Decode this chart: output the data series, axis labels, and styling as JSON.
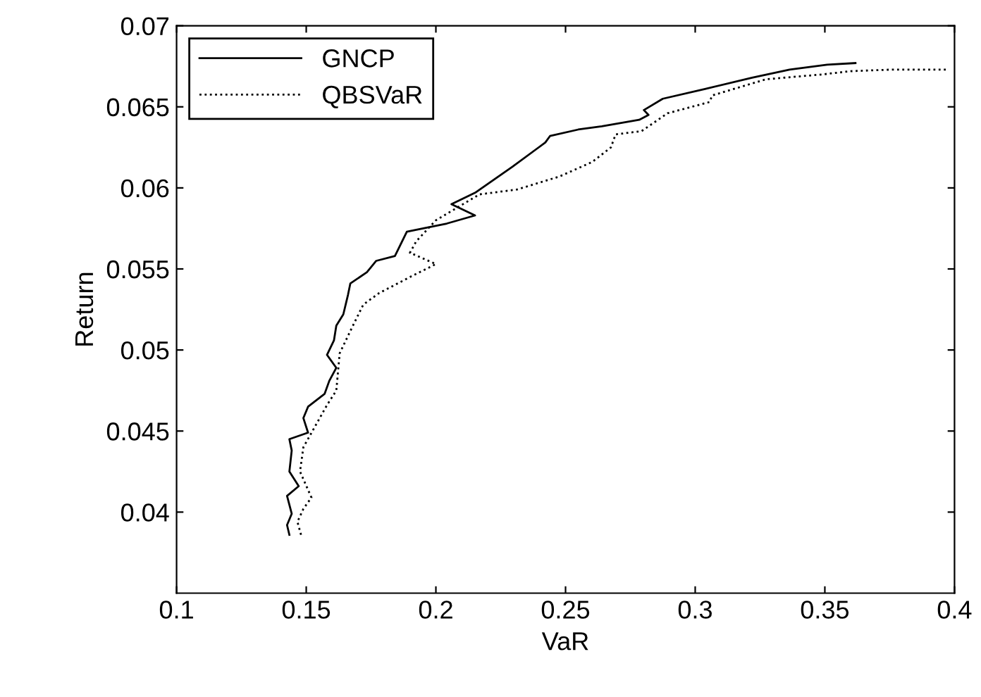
{
  "chart_data": {
    "type": "line",
    "xlabel": "VaR",
    "ylabel": "Return",
    "xlim": [
      0.1,
      0.4
    ],
    "ylim": [
      0.035,
      0.07
    ],
    "xticks": [
      0.1,
      0.15,
      0.2,
      0.25,
      0.3,
      0.35,
      0.4
    ],
    "yticks": [
      0.04,
      0.045,
      0.05,
      0.055,
      0.06,
      0.065,
      0.07
    ],
    "grid": false,
    "legend": "top left",
    "marker": "none",
    "series": [
      {
        "name": "GNCP",
        "color": "#000000",
        "line_style": "solid",
        "x": [
          0.1435,
          0.1426,
          0.1444,
          0.1426,
          0.1471,
          0.1435,
          0.1444,
          0.1435,
          0.1507,
          0.1489,
          0.1507,
          0.1571,
          0.1589,
          0.1616,
          0.158,
          0.1607,
          0.1616,
          0.1643,
          0.1661,
          0.167,
          0.1734,
          0.177,
          0.1842,
          0.1888,
          0.1951,
          0.2042,
          0.2151,
          0.206,
          0.2151,
          0.2295,
          0.2422,
          0.244,
          0.2549,
          0.264,
          0.2784,
          0.282,
          0.2802,
          0.2875,
          0.3038,
          0.3219,
          0.3364,
          0.3509,
          0.3618
        ],
        "values": [
          0.0386,
          0.0392,
          0.0399,
          0.041,
          0.0416,
          0.0425,
          0.0438,
          0.0445,
          0.0449,
          0.0458,
          0.0465,
          0.0473,
          0.0481,
          0.0489,
          0.0497,
          0.0506,
          0.0515,
          0.0522,
          0.0534,
          0.0541,
          0.0548,
          0.0555,
          0.0558,
          0.0573,
          0.0575,
          0.0578,
          0.0583,
          0.059,
          0.0597,
          0.0613,
          0.0628,
          0.0632,
          0.0636,
          0.0638,
          0.0642,
          0.0645,
          0.0648,
          0.0655,
          0.0661,
          0.0668,
          0.0673,
          0.0676,
          0.0677
        ]
      },
      {
        "name": "QBSVaR",
        "color": "#000000",
        "line_style": "dotted",
        "x": [
          0.148,
          0.1466,
          0.1489,
          0.152,
          0.1476,
          0.1489,
          0.158,
          0.1616,
          0.1629,
          0.168,
          0.172,
          0.178,
          0.19,
          0.2,
          0.19,
          0.1924,
          0.2,
          0.2168,
          0.2313,
          0.2476,
          0.2603,
          0.2675,
          0.2693,
          0.2793,
          0.2893,
          0.3056,
          0.3065,
          0.3273,
          0.349,
          0.36,
          0.376,
          0.3978
        ],
        "values": [
          0.0386,
          0.0394,
          0.0402,
          0.0409,
          0.0425,
          0.044,
          0.0466,
          0.0475,
          0.0498,
          0.0515,
          0.0528,
          0.0535,
          0.0545,
          0.0553,
          0.056,
          0.0567,
          0.058,
          0.0596,
          0.0599,
          0.0607,
          0.0616,
          0.0625,
          0.0633,
          0.0635,
          0.0646,
          0.0653,
          0.0657,
          0.0667,
          0.067,
          0.0672,
          0.0673,
          0.0673
        ]
      }
    ]
  }
}
